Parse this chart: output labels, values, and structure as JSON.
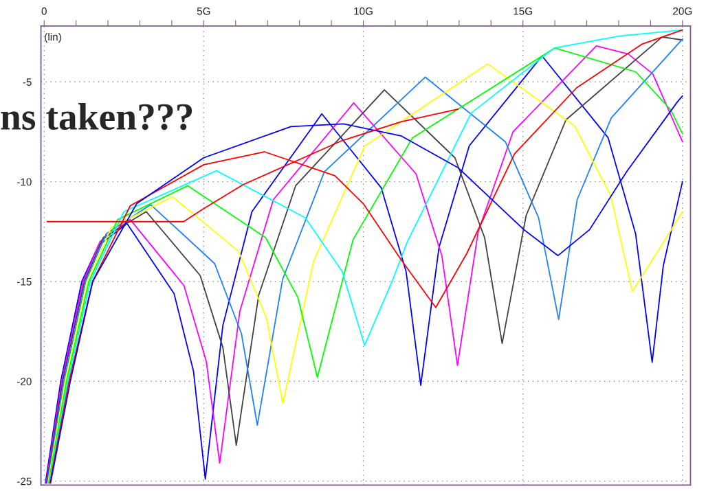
{
  "chart_data": {
    "type": "line",
    "annotations": [
      "(lin)",
      "ns taken???"
    ],
    "xlim": [
      -0.1,
      20.25
    ],
    "ylim": [
      -25.2,
      -2.2
    ],
    "xticks": [
      {
        "value": 0,
        "label": "0"
      },
      {
        "value": 1,
        "label": null
      },
      {
        "value": 2,
        "label": null
      },
      {
        "value": 3,
        "label": null
      },
      {
        "value": 4,
        "label": null
      },
      {
        "value": 5,
        "label": "5G"
      },
      {
        "value": 6,
        "label": null
      },
      {
        "value": 7,
        "label": null
      },
      {
        "value": 8,
        "label": null
      },
      {
        "value": 9,
        "label": null
      },
      {
        "value": 10,
        "label": "10G"
      },
      {
        "value": 11,
        "label": null
      },
      {
        "value": 12,
        "label": null
      },
      {
        "value": 13,
        "label": null
      },
      {
        "value": 14,
        "label": null
      },
      {
        "value": 15,
        "label": "15G"
      },
      {
        "value": 16,
        "label": null
      },
      {
        "value": 17,
        "label": null
      },
      {
        "value": 18,
        "label": null
      },
      {
        "value": 19,
        "label": null
      },
      {
        "value": 20,
        "label": "20G"
      }
    ],
    "yticks": [
      -5,
      -10,
      -15,
      -20,
      -25
    ],
    "grid": true,
    "series": [
      {
        "color": "#0000ff",
        "x": [
          0.04,
          0.52,
          1.18,
          1.7,
          2.6,
          4.07,
          4.68,
          5.05,
          5.6,
          6.51,
          8.7,
          10.56,
          11.34,
          11.8,
          12.37,
          13.32,
          15.6,
          17.67,
          18.53,
          19.05,
          19.4,
          20
        ],
        "values": [
          -25.1,
          -20,
          -15,
          -13.2,
          -12.1,
          -15.6,
          -19.5,
          -24.9,
          -17.2,
          -11.5,
          -6.6,
          -10.3,
          -14.5,
          -20.2,
          -13.3,
          -8.2,
          -3.7,
          -7.8,
          -12.6,
          -19.05,
          -14.2,
          -10
        ]
      },
      {
        "color": "#ff00ff",
        "x": [
          0.06,
          0.55,
          1.22,
          1.75,
          2.7,
          4.38,
          5.08,
          5.5,
          6.13,
          7.18,
          9.7,
          11.65,
          12.46,
          12.95,
          13.6,
          14.69,
          17.3,
          18.3,
          19.07,
          20
        ],
        "values": [
          -25.1,
          -20,
          -15,
          -13,
          -11.9,
          -15.2,
          -19,
          -24.1,
          -16.5,
          -10.9,
          -6.05,
          -9.6,
          -13.7,
          -19.2,
          -12.5,
          -7.5,
          -3.2,
          -3.6,
          -4.6,
          -8
        ]
      },
      {
        "color": "#404040",
        "x": [
          0.08,
          0.58,
          1.26,
          1.85,
          3.2,
          4.89,
          5.6,
          6.02,
          6.72,
          7.88,
          10.66,
          12.87,
          13.8,
          14.35,
          15.1,
          16.35,
          19.36,
          20
        ],
        "values": [
          -25.1,
          -20,
          -15,
          -12.8,
          -11.5,
          -14.7,
          -18.3,
          -23.2,
          -15.7,
          -10.2,
          -5.4,
          -8.8,
          -12.8,
          -18.1,
          -11.7,
          -6.9,
          -2.75,
          -2.9
        ]
      },
      {
        "color": "#1e7fff",
        "x": [
          0.1,
          0.62,
          1.3,
          1.95,
          3.34,
          5.34,
          6.18,
          6.68,
          7.47,
          8.78,
          11.94,
          14.45,
          15.49,
          16.12,
          16.7,
          17.77,
          20
        ],
        "values": [
          -25.1,
          -20,
          -15,
          -12.6,
          -11.15,
          -14.1,
          -17.6,
          -22.2,
          -14.9,
          -9.5,
          -4.76,
          -8,
          -11.8,
          -16.9,
          -10.9,
          -6.8,
          -2.85
        ]
      },
      {
        "color": "#ffff00",
        "x": [
          0.12,
          0.66,
          1.35,
          2.1,
          4.02,
          6.1,
          6.96,
          7.48,
          8.44,
          10.05,
          13.9,
          16.62,
          17.75,
          18.43,
          19.73,
          20
        ],
        "values": [
          -25.1,
          -20,
          -15,
          -12.3,
          -10.75,
          -13.5,
          -16.8,
          -21.1,
          -14,
          -8.2,
          -4.1,
          -7.2,
          -10.7,
          -15.5,
          -12.2,
          -11.5
        ]
      },
      {
        "color": "#00ff00",
        "x": [
          0.14,
          0.7,
          1.4,
          2.3,
          4.5,
          6.94,
          7.95,
          8.56,
          9.68,
          11.54,
          16,
          18.54,
          19.63,
          20
        ],
        "values": [
          -25.1,
          -20,
          -15,
          -11.9,
          -10.2,
          -12.8,
          -15.8,
          -19.8,
          -12.9,
          -7.8,
          -3.3,
          -4.5,
          -6.4,
          -7.6
        ]
      },
      {
        "color": "#00ffff",
        "x": [
          0.16,
          0.74,
          1.45,
          2.5,
          5.4,
          8.18,
          9.34,
          10.04,
          10.9,
          11.38,
          13.38,
          15.98,
          18.04,
          20
        ],
        "values": [
          -25.1,
          -20,
          -15,
          -11.5,
          -9.45,
          -11.8,
          -14.5,
          -18.2,
          -15,
          -13,
          -6.56,
          -3.3,
          -2.7,
          -2.4
        ]
      },
      {
        "color": "#ff0000",
        "x": [
          0.18,
          0.78,
          1.52,
          2.7,
          5,
          6.9,
          9.11,
          10,
          11.18,
          12.27,
          13.24,
          14.74,
          16.68,
          18.74,
          20
        ],
        "values": [
          -25.1,
          -20,
          -15,
          -11.2,
          -9.15,
          -8.5,
          -9.7,
          -11.1,
          -13.9,
          -16.3,
          -13.6,
          -8.6,
          -5.3,
          -3.1,
          -2.4
        ]
      },
      {
        "color": "#0000ff",
        "x": [
          0.2,
          0.82,
          1.52,
          2.9,
          5,
          7.73,
          9.38,
          11.18,
          12.97,
          15.03,
          16.1,
          17.09,
          18.25,
          19.84,
          20
        ],
        "values": [
          -25.1,
          -20,
          -15,
          -11.1,
          -8.8,
          -7.24,
          -7.1,
          -7.7,
          -9.3,
          -12.4,
          -13.7,
          -12.4,
          -9.5,
          -6,
          -5.7
        ]
      },
      {
        "color": "#ff0000",
        "x": [
          0.1,
          4.37,
          5,
          6.23,
          9.32,
          11.18,
          12.97
        ],
        "values": [
          -12,
          -12,
          -11.35,
          -10.15,
          -7.95,
          -7,
          -6.36
        ]
      }
    ]
  }
}
